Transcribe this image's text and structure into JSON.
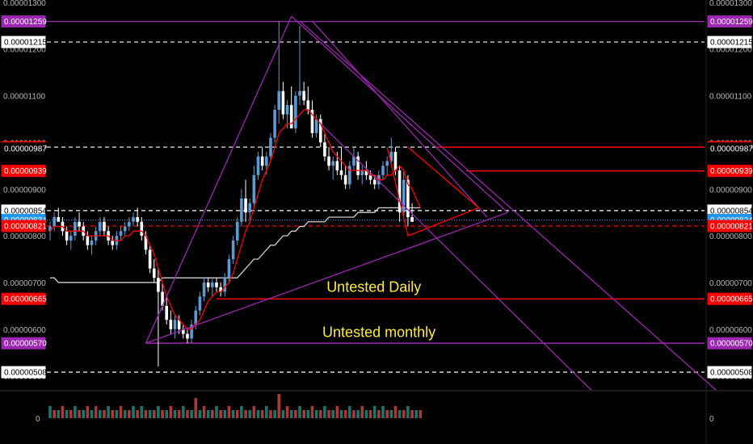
{
  "chart_data": {
    "type": "candlestick",
    "price_axis": {
      "ylim": [
        4.7e-06,
        1.305e-05
      ],
      "tick_labels": [
        "0.00001300",
        "0.00001200",
        "0.00001100",
        "0.00001000",
        "0.00000900",
        "0.00000800",
        "0.00000700",
        "0.00000600",
        "0.00000500"
      ],
      "tick_values": [
        1.3e-05,
        1.2e-05,
        1.1e-05,
        1e-05,
        9e-06,
        8e-06,
        7e-06,
        6e-06,
        5e-06
      ]
    },
    "price_tags": [
      {
        "label": "0.00001259",
        "value": 1.259e-05,
        "color": "#9c27b0",
        "text_color": "#ffffff",
        "line": "solid",
        "line_color": "#9c27b0"
      },
      {
        "label": "0.00001215",
        "value": 1.215e-05,
        "color": "#ffffff",
        "text_color": "#000000",
        "line": "dashed",
        "line_color": "#ffffff"
      },
      {
        "label": "0.00000990",
        "value": 9.9e-06,
        "color": "#ff0000",
        "text_color": "#ffffff",
        "line": "dashed",
        "line_color": "#ffffff"
      },
      {
        "label": "0.00000987",
        "value": 9.87e-06,
        "color": "#000000",
        "text_color": "#ffffff",
        "line": "none",
        "line_color": "#000000"
      },
      {
        "label": "0.00000939",
        "value": 9.39e-06,
        "color": "#ff0000",
        "text_color": "#ffffff",
        "line": "none",
        "line_color": "#ff0000"
      },
      {
        "label": "0.00000854",
        "value": 8.54e-06,
        "color": "#ffffff",
        "text_color": "#000000",
        "line": "dashed",
        "line_color": "#ffffff"
      },
      {
        "label": "0.00000834",
        "value": 8.34e-06,
        "color": "#2196f3",
        "text_color": "#ffffff",
        "line": "dotted",
        "line_color": "#2196f3"
      },
      {
        "label": "0.00000821",
        "value": 8.21e-06,
        "color": "#ff0000",
        "text_color": "#ffffff",
        "line": "dashed",
        "line_color": "#ff0000"
      },
      {
        "label": "0.00000665",
        "value": 6.65e-06,
        "color": "#ff0000",
        "text_color": "#ffffff",
        "line": "none",
        "line_color": "#ff0000"
      },
      {
        "label": "0.00000570",
        "value": 5.7e-06,
        "color": "#9c27b0",
        "text_color": "#ffffff",
        "line": "none",
        "line_color": "#9c27b0"
      },
      {
        "label": "0.00000508",
        "value": 5.08e-06,
        "color": "#ffffff",
        "text_color": "#000000",
        "line": "dashed",
        "line_color": "#ffffff"
      }
    ],
    "annotations": [
      {
        "text": "Untested Daily",
        "price": 6.9e-06,
        "bar": 68
      },
      {
        "text": "Untested monthly",
        "price": 5.94e-06,
        "bar": 67
      }
    ],
    "candles_ohlc": [
      [
        8.1e-06,
        8.3e-06,
        7.9e-06,
        8.2e-06
      ],
      [
        8.2e-06,
        8.5e-06,
        8.1e-06,
        8.4e-06
      ],
      [
        8.4e-06,
        8.6e-06,
        8.3e-06,
        8.3e-06
      ],
      [
        8.3e-06,
        8.4e-06,
        8e-06,
        8.1e-06
      ],
      [
        8.1e-06,
        8.2e-06,
        7.8e-06,
        7.9e-06
      ],
      [
        7.9e-06,
        8.1e-06,
        7.7e-06,
        8e-06
      ],
      [
        8e-06,
        8.4e-06,
        7.9e-06,
        8.3e-06
      ],
      [
        8.3e-06,
        8.5e-06,
        8.1e-06,
        8.2e-06
      ],
      [
        8.2e-06,
        8.3e-06,
        7.9e-06,
        8e-06
      ],
      [
        8e-06,
        8.1e-06,
        7.7e-06,
        7.8e-06
      ],
      [
        7.8e-06,
        8e-06,
        7.6e-06,
        7.9e-06
      ],
      [
        7.9e-06,
        8.2e-06,
        7.8e-06,
        8.1e-06
      ],
      [
        8.1e-06,
        8.4e-06,
        8e-06,
        8.3e-06
      ],
      [
        8.3e-06,
        8.4e-06,
        8e-06,
        8.1e-06
      ],
      [
        8.1e-06,
        8.2e-06,
        7.8e-06,
        7.9e-06
      ],
      [
        7.9e-06,
        8e-06,
        7.7e-06,
        7.8e-06
      ],
      [
        7.8e-06,
        8.1e-06,
        7.7e-06,
        8e-06
      ],
      [
        8e-06,
        8.2e-06,
        7.9e-06,
        8.1e-06
      ],
      [
        8.1e-06,
        8.3e-06,
        8e-06,
        8.2e-06
      ],
      [
        8.2e-06,
        8.4e-06,
        8.1e-06,
        8.3e-06
      ],
      [
        8.3e-06,
        8.5e-06,
        8.2e-06,
        8.4e-06
      ],
      [
        8.4e-06,
        8.6e-06,
        8.2e-06,
        8.3e-06
      ],
      [
        8.3e-06,
        8.4e-06,
        7.9e-06,
        8e-06
      ],
      [
        8e-06,
        8.1e-06,
        7.6e-06,
        7.7e-06
      ],
      [
        7.7e-06,
        7.8e-06,
        7.2e-06,
        7.3e-06
      ],
      [
        7.3e-06,
        7.5e-06,
        7e-06,
        7.1e-06
      ],
      [
        7.1e-06,
        7.3e-06,
        5.2e-06,
        6.8e-06
      ],
      [
        6.8e-06,
        7e-06,
        6.4e-06,
        6.5e-06
      ],
      [
        6.5e-06,
        6.7e-06,
        6.1e-06,
        6.2e-06
      ],
      [
        6.2e-06,
        6.4e-06,
        5.9e-06,
        6e-06
      ],
      [
        6e-06,
        6.3e-06,
        5.8e-06,
        6.2e-06
      ],
      [
        6.2e-06,
        6.3e-06,
        5.9e-06,
        6e-06
      ],
      [
        6e-06,
        6.1e-06,
        5.8e-06,
        5.9e-06
      ],
      [
        5.9e-06,
        6e-06,
        5.7e-06,
        5.8e-06
      ],
      [
        5.8e-06,
        6.2e-06,
        5.7e-06,
        6.1e-06
      ],
      [
        6.1e-06,
        6.5e-06,
        6e-06,
        6.4e-06
      ],
      [
        6.4e-06,
        6.8e-06,
        6.3e-06,
        6.7e-06
      ],
      [
        6.7e-06,
        7.1e-06,
        6.6e-06,
        7e-06
      ],
      [
        7e-06,
        7.1e-06,
        6.8e-06,
        6.9e-06
      ],
      [
        6.9e-06,
        7.1e-06,
        6.7e-06,
        7e-06
      ],
      [
        7e-06,
        7.1e-06,
        6.8e-06,
        6.9e-06
      ],
      [
        6.9e-06,
        7e-06,
        6.7e-06,
        6.8e-06
      ],
      [
        6.8e-06,
        7.2e-06,
        6.7e-06,
        7.1e-06
      ],
      [
        7.1e-06,
        7.6e-06,
        7e-06,
        7.5e-06
      ],
      [
        7.5e-06,
        8e-06,
        7.4e-06,
        7.9e-06
      ],
      [
        7.9e-06,
        8.4e-06,
        7.8e-06,
        8.3e-06
      ],
      [
        8.3e-06,
        9e-06,
        8.2e-06,
        8.8e-06
      ],
      [
        8.8e-06,
        9.2e-06,
        8.3e-06,
        8.5e-06
      ],
      [
        8.5e-06,
        8.8e-06,
        8.3e-06,
        8.7e-06
      ],
      [
        8.7e-06,
        9.5e-06,
        8.6e-06,
        9.3e-06
      ],
      [
        9.3e-06,
        9.8e-06,
        9.2e-06,
        9.7e-06
      ],
      [
        9.7e-06,
        9.9e-06,
        9.4e-06,
        9.5e-06
      ],
      [
        9.5e-06,
        9.8e-06,
        9.3e-06,
        9.7e-06
      ],
      [
        9.7e-06,
        1.02e-05,
        9.6e-06,
        1.01e-05
      ],
      [
        1.01e-05,
        1.08e-05,
        1e-05,
        1.07e-05
      ],
      [
        1.07e-05,
        1.26e-05,
        1.04e-05,
        1.11e-05
      ],
      [
        1.11e-05,
        1.13e-05,
        1.05e-05,
        1.06e-05
      ],
      [
        1.06e-05,
        1.09e-05,
        1.03e-05,
        1.08e-05
      ],
      [
        1.08e-05,
        1.12e-05,
        1.06e-05,
        1.03e-05
      ],
      [
        1.03e-05,
        1.11e-05,
        1.02e-05,
        1.1e-05
      ],
      [
        1.1e-05,
        1.25e-05,
        1.08e-05,
        1.11e-05
      ],
      [
        1.11e-05,
        1.13e-05,
        1.08e-05,
        1.09e-05
      ],
      [
        1.09e-05,
        1.12e-05,
        1.06e-05,
        1.07e-05
      ],
      [
        1.07e-05,
        1.09e-05,
        1.01e-05,
        1.02e-05
      ],
      [
        1.02e-05,
        1.06e-05,
        1.01e-05,
        1.05e-05
      ],
      [
        1.05e-05,
        1.06e-05,
        9.9e-06,
        1e-05
      ],
      [
        1e-05,
        1.02e-05,
        9.6e-06,
        9.7e-06
      ],
      [
        9.7e-06,
        9.9e-06,
        9.4e-06,
        9.5e-06
      ],
      [
        9.5e-06,
        9.7e-06,
        9.2e-06,
        9.6e-06
      ],
      [
        9.6e-06,
        9.8e-06,
        9.3e-06,
        9.4e-06
      ],
      [
        9.4e-06,
        9.9e-06,
        9.2e-06,
        9.3e-06
      ],
      [
        9.3e-06,
        9.5e-06,
        9e-06,
        9.1e-06
      ],
      [
        9.1e-06,
        9.6e-06,
        9e-06,
        9.5e-06
      ],
      [
        9.5e-06,
        9.9e-06,
        9.4e-06,
        9.7e-06
      ],
      [
        9.7e-06,
        9.8e-06,
        9.2e-06,
        9.3e-06
      ],
      [
        9.3e-06,
        9.5e-06,
        9.1e-06,
        9.4e-06
      ],
      [
        9.4e-06,
        9.6e-06,
        9.2e-06,
        9.3e-06
      ],
      [
        9.3e-06,
        9.4e-06,
        9.1e-06,
        9.2e-06
      ],
      [
        9.2e-06,
        9.3e-06,
        9e-06,
        9.1e-06
      ],
      [
        9.1e-06,
        9.4e-06,
        9e-06,
        9.3e-06
      ],
      [
        9.3e-06,
        9.6e-06,
        9.2e-06,
        9.5e-06
      ],
      [
        9.5e-06,
        9.7e-06,
        9.3e-06,
        9.6e-06
      ],
      [
        9.6e-06,
        1.01e-05,
        9.5e-06,
        9.8e-06
      ],
      [
        9.8e-06,
        9.9e-06,
        9.3e-06,
        9.4e-06
      ],
      [
        9.4e-06,
        9.5e-06,
        8.3e-06,
        8.5e-06
      ],
      [
        8.5e-06,
        9.4e-06,
        8.4e-06,
        9.2e-06
      ],
      [
        9.2e-06,
        9.3e-06,
        8.2e-06,
        8.4e-06
      ],
      [
        8.4e-06,
        8.7e-06,
        8.3e-06,
        8.3e-06
      ]
    ],
    "ema_values": [
      8.1e-06,
      8.2e-06,
      8.2e-06,
      8.2e-06,
      8.1e-06,
      8.1e-06,
      8.1e-06,
      8.1e-06,
      8.1e-06,
      8e-06,
      8e-06,
      8e-06,
      8e-06,
      8e-06,
      8e-06,
      7.9e-06,
      7.9e-06,
      7.9e-06,
      8e-06,
      8e-06,
      8.1e-06,
      8.1e-06,
      8.1e-06,
      8e-06,
      7.8e-06,
      7.6e-06,
      7.3e-06,
      7e-06,
      6.7e-06,
      6.5e-06,
      6.3e-06,
      6.2e-06,
      6.1e-06,
      6e-06,
      6e-06,
      6.1e-06,
      6.2e-06,
      6.4e-06,
      6.6e-06,
      6.7e-06,
      6.8e-06,
      6.8e-06,
      6.9e-06,
      7e-06,
      7.2e-06,
      7.5e-06,
      7.8e-06,
      8.1e-06,
      8.3e-06,
      8.6e-06,
      8.9e-06,
      9.2e-06,
      9.4e-06,
      9.6e-06,
      9.9e-06,
      1.02e-05,
      1.03e-05,
      1.04e-05,
      1.04e-05,
      1.05e-05,
      1.06e-05,
      1.07e-05,
      1.07e-05,
      1.06e-05,
      1.05e-05,
      1.04e-05,
      1.02e-05,
      1e-05,
      9.8e-06,
      9.7e-06,
      9.6e-06,
      9.5e-06,
      9.4e-06,
      9.4e-06,
      9.4e-06,
      9.4e-06,
      9.4e-06,
      9.3e-06,
      9.3e-06,
      9.2e-06,
      9.2e-06,
      9.3e-06,
      9.3e-06,
      9.4e-06,
      9.5e-06,
      9.4e-06,
      9.1e-06,
      9e-06,
      8.8e-06,
      8.6e-06
    ],
    "sma_values": [
      7.1e-06,
      7.1e-06,
      7e-06,
      7e-06,
      7e-06,
      7e-06,
      7e-06,
      7e-06,
      7e-06,
      7e-06,
      7e-06,
      7e-06,
      7e-06,
      7e-06,
      7e-06,
      7e-06,
      7e-06,
      7e-06,
      7e-06,
      7e-06,
      7e-06,
      7e-06,
      7e-06,
      7e-06,
      7e-06,
      7e-06,
      7e-06,
      7.1e-06,
      7.1e-06,
      7.1e-06,
      7.1e-06,
      7.1e-06,
      7.1e-06,
      7.1e-06,
      7.1e-06,
      7.1e-06,
      7.1e-06,
      7.1e-06,
      7.1e-06,
      7.1e-06,
      7.1e-06,
      7.1e-06,
      7.1e-06,
      7.1e-06,
      7.1e-06,
      7.1e-06,
      7.2e-06,
      7.3e-06,
      7.4e-06,
      7.5e-06,
      7.5e-06,
      7.6e-06,
      7.7e-06,
      7.8e-06,
      7.8e-06,
      7.9e-06,
      8e-06,
      8e-06,
      8.1e-06,
      8.1e-06,
      8.2e-06,
      8.2e-06,
      8.3e-06,
      8.3e-06,
      8.3e-06,
      8.3e-06,
      8.3e-06,
      8.4e-06,
      8.4e-06,
      8.4e-06,
      8.4e-06,
      8.4e-06,
      8.4e-06,
      8.4e-06,
      8.5e-06,
      8.5e-06,
      8.5e-06,
      8.5e-06,
      8.5e-06,
      8.6e-06,
      8.6e-06,
      8.6e-06,
      8.6e-06,
      8.6e-06,
      8.6e-06,
      8.6e-06,
      8.6e-06,
      8.6e-06,
      8.6e-06,
      8.6e-06
    ],
    "trend_lines": [
      {
        "color": "#9c27b0",
        "points": [
          [
            23,
            5.7e-06
          ],
          [
            58,
            1.27e-05
          ]
        ]
      },
      {
        "color": "#9c27b0",
        "points": [
          [
            58,
            1.27e-05
          ],
          [
            110,
            8.5e-06
          ]
        ]
      },
      {
        "color": "#9c27b0",
        "points": [
          [
            23,
            5.7e-06
          ],
          [
            110,
            8.5e-06
          ]
        ]
      },
      {
        "color": "#9c27b0",
        "points": [
          [
            63,
            1.26e-05
          ],
          [
            105,
            8.4e-06
          ]
        ]
      },
      {
        "color": "#9c27b0",
        "points": [
          [
            60,
            1.26e-05
          ],
          [
            160,
            4.7e-06
          ]
        ]
      },
      {
        "color": "#9c27b0",
        "points": [
          [
            65,
            1.04e-05
          ],
          [
            130,
            4.7e-06
          ]
        ]
      },
      {
        "color": "#ff0000",
        "points": [
          [
            86,
            9.9e-06
          ],
          [
            103,
            8.6e-06
          ],
          [
            86,
            8e-06
          ],
          [
            81,
            9.9e-06
          ]
        ]
      }
    ],
    "volume_axis_label": "0",
    "volume": [
      3,
      2,
      2,
      3,
      2,
      2,
      3,
      2,
      2,
      3,
      2,
      3,
      2,
      2,
      3,
      2,
      2,
      3,
      2,
      2,
      3,
      2,
      3,
      2,
      2,
      2,
      3,
      2,
      2,
      3,
      2,
      2,
      3,
      2,
      2,
      5,
      2,
      3,
      2,
      2,
      3,
      2,
      2,
      3,
      2,
      2,
      3,
      2,
      2,
      3,
      2,
      2,
      3,
      2,
      2,
      6,
      2,
      3,
      2,
      2,
      3,
      2,
      2,
      3,
      2,
      2,
      3,
      2,
      2,
      3,
      2,
      2,
      3,
      2,
      2,
      3,
      2,
      2,
      3,
      2,
      3,
      2,
      2,
      3,
      2,
      2,
      3,
      2,
      2,
      2
    ],
    "volume_colors": [
      "#26a69a",
      "#ef5350",
      "#26a69a",
      "#ef5350",
      "#26a69a",
      "#ef5350",
      "#26a69a",
      "#ef5350",
      "#26a69a",
      "#ef5350"
    ],
    "candle_up_color": "#5b9bd5",
    "candle_down_color": "#ffffff",
    "ema_color": "#ff0000",
    "sma_color": "#d0d0d0"
  }
}
